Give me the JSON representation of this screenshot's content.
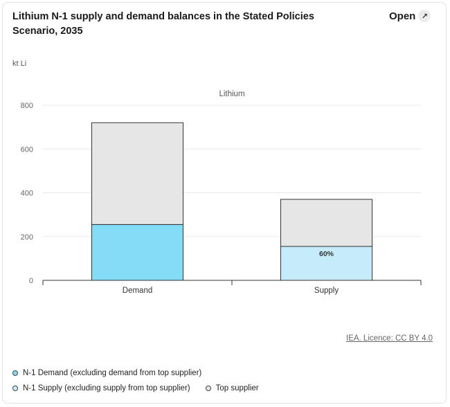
{
  "header": {
    "title": "Lithium N-1 supply and demand balances in the Stated Policies Scenario, 2035",
    "open_label": "Open",
    "open_icon": "external-link-icon"
  },
  "unit_label": "kt Li",
  "licence_label": "IEA. Licence: CC BY 4.0",
  "legend": [
    {
      "label": "N-1 Demand (excluding demand from top supplier)",
      "color": "#84dcf6"
    },
    {
      "label": "N-1 Supply (excluding supply from top supplier)",
      "color": "#c6ecfb"
    },
    {
      "label": "Top supplier",
      "color": "#e6e6e6"
    }
  ],
  "chart_data": {
    "type": "bar",
    "stacked": true,
    "panel_title": "Lithium",
    "categories": [
      "Demand",
      "Supply"
    ],
    "ylim": [
      0,
      800
    ],
    "yticks": [
      0,
      200,
      400,
      600,
      800
    ],
    "grid": true,
    "series": [
      {
        "values": [
          255,
          155
        ],
        "colors": [
          "#84dcf6",
          "#c6ecfb"
        ]
      },
      {
        "values": [
          465,
          215
        ],
        "color": "#e6e6e6"
      }
    ],
    "annotations": [
      {
        "category": "Supply",
        "text": "60%"
      }
    ]
  }
}
